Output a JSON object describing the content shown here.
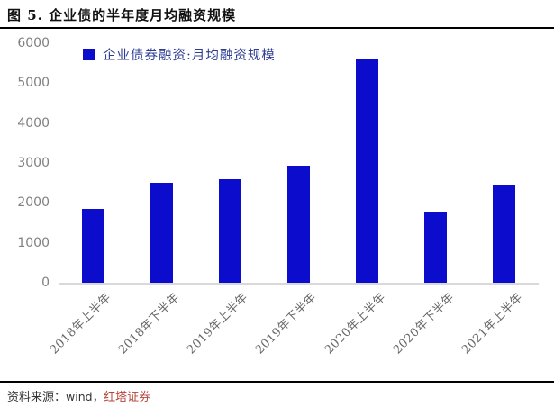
{
  "header": {
    "title": "图 5. 企业债的半年度月均融资规模"
  },
  "chart_data": {
    "type": "bar",
    "title": "图 5. 企业债的半年度月均融资规模",
    "legend": "企业债券融资:月均融资规模",
    "legend_position": "top",
    "categories": [
      "2018年上半年",
      "2018年下半年",
      "2019年上半年",
      "2019年下半年",
      "2020年上半年",
      "2020年下半年",
      "2021年上半年"
    ],
    "values": [
      1850,
      2500,
      2600,
      2930,
      5600,
      1780,
      2470
    ],
    "xlabel": "",
    "ylabel": "",
    "ylim": [
      0,
      6000
    ],
    "yticks": [
      6000,
      5000,
      4000,
      3000,
      2000,
      1000,
      0
    ],
    "grid": false,
    "colors": {
      "bar": "#0c0ccd",
      "legend_text": "#2e3d94",
      "axis_line": "#d9d9d9",
      "tick_label": "#808080",
      "source_org_red": "#b5453c"
    }
  },
  "footer": {
    "source_prefix": "资料来源：",
    "source_name": "wind，",
    "source_org": "红塔证券"
  }
}
